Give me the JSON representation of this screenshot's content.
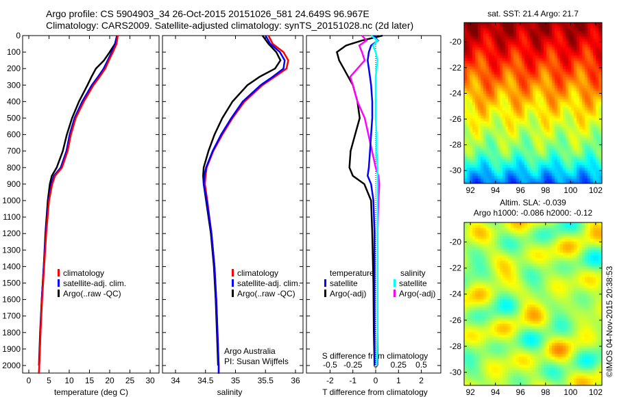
{
  "header": {
    "line1": "Argo profile: CS 5904903_34 26-Oct-2015 20151026_581 24.649S 96.967E",
    "line2": "Climatology: CARS2009. Satellite-adjusted climatology: synTS_20151028.nc (2d later)"
  },
  "footer_stamp": "©IMOS 04-Nov-2015 20:38:53",
  "colors": {
    "climatology": "#ff0000",
    "satellite": "#0000ff",
    "argo": "#000000",
    "sal_satellite": "#00ffff",
    "sal_argo": "#ff00ff"
  },
  "chart_data": [
    {
      "type": "line",
      "id": "temperature",
      "xlabel": "temperature (deg C)",
      "ylabel": "",
      "xlim": [
        -2,
        32
      ],
      "ylim": [
        2050,
        0
      ],
      "xticks": [
        0,
        5,
        10,
        15,
        20,
        25,
        30
      ],
      "yticks": [
        0,
        100,
        200,
        300,
        400,
        500,
        600,
        700,
        800,
        900,
        1000,
        1100,
        1200,
        1300,
        1400,
        1500,
        1600,
        1700,
        1800,
        1900,
        2000
      ],
      "depth": [
        0,
        50,
        100,
        150,
        200,
        250,
        300,
        400,
        500,
        600,
        700,
        800,
        850,
        900,
        1000,
        1200,
        1400,
        1600,
        1800,
        2000,
        2050
      ],
      "series": [
        {
          "name": "climatology",
          "values": [
            22.0,
            21.7,
            20.8,
            19.8,
            18.9,
            17.5,
            16.0,
            13.6,
            11.6,
            10.4,
            9.6,
            8.2,
            6.5,
            5.8,
            5.0,
            4.3,
            3.8,
            3.3,
            2.9,
            2.6,
            2.5
          ]
        },
        {
          "name": "satellite-adj. clim.",
          "values": [
            21.8,
            21.4,
            20.5,
            19.5,
            18.5,
            17.1,
            15.6,
            13.2,
            11.3,
            10.1,
            9.3,
            7.9,
            6.2,
            5.6,
            4.9,
            4.2,
            3.7,
            3.2,
            2.9,
            2.6,
            2.5
          ]
        },
        {
          "name": "Argo(..raw -QC)",
          "values": [
            21.8,
            21.3,
            20.0,
            18.6,
            16.6,
            15.5,
            14.5,
            12.4,
            10.7,
            9.4,
            8.4,
            6.9,
            5.7,
            5.2,
            4.7,
            4.1,
            3.7,
            3.2,
            2.8,
            2.5,
            null
          ]
        }
      ],
      "legend": [
        "climatology",
        "satellite-adj. clim.",
        "Argo(..raw -QC)"
      ]
    },
    {
      "type": "line",
      "id": "salinity",
      "xlabel": "salinity",
      "xlim": [
        33.75,
        36.1
      ],
      "ylim": [
        2050,
        0
      ],
      "xticks": [
        34,
        34.5,
        35,
        35.5,
        36
      ],
      "depth": [
        0,
        50,
        100,
        150,
        200,
        250,
        300,
        400,
        500,
        600,
        700,
        800,
        850,
        900,
        1000,
        1200,
        1400,
        1600,
        1800,
        2000,
        2050
      ],
      "series": [
        {
          "name": "climatology",
          "values": [
            35.55,
            35.62,
            35.8,
            35.88,
            35.85,
            35.65,
            35.45,
            35.15,
            34.95,
            34.78,
            34.63,
            34.52,
            34.5,
            34.49,
            34.53,
            34.6,
            34.65,
            34.68,
            34.7,
            34.72,
            34.72
          ]
        },
        {
          "name": "satellite-adj. clim.",
          "values": [
            35.5,
            35.58,
            35.74,
            35.82,
            35.8,
            35.62,
            35.42,
            35.12,
            34.93,
            34.76,
            34.62,
            34.51,
            34.48,
            34.47,
            34.52,
            34.6,
            34.65,
            34.68,
            34.7,
            34.72,
            34.72
          ]
        },
        {
          "name": "Argo(..raw -QC)",
          "values": [
            35.45,
            35.55,
            35.68,
            35.75,
            35.66,
            35.4,
            35.2,
            34.95,
            34.78,
            34.65,
            34.55,
            34.47,
            34.46,
            34.47,
            34.51,
            34.59,
            34.64,
            34.67,
            34.69,
            34.71,
            null
          ]
        }
      ],
      "legend": [
        "climatology",
        "satellite-adj. clim.",
        "Argo(..raw -QC)"
      ],
      "annotation": [
        "Argo Australia",
        "PI: Susan Wijffels"
      ]
    },
    {
      "type": "line",
      "id": "difference",
      "xlabel": "T difference from climatology",
      "xlabel_top": "S difference from climatology",
      "xlim_T": [
        -3,
        3
      ],
      "xlim_S": [
        -0.75,
        0.75
      ],
      "xticks_T": [
        -2,
        -1,
        0,
        1,
        2
      ],
      "xticks_S": [
        -0.5,
        -0.25,
        0,
        0.25,
        0.5
      ],
      "depth": [
        0,
        30,
        60,
        100,
        150,
        200,
        250,
        300,
        400,
        500,
        600,
        700,
        800,
        850,
        900,
        1000,
        1200,
        1500,
        1800,
        2000
      ],
      "series": [
        {
          "name": "temperature satellite",
          "axis": "T",
          "values": [
            -0.1,
            0.1,
            -0.2,
            -0.3,
            -0.35,
            -0.3,
            -0.25,
            -0.2,
            -0.15,
            -0.15,
            -0.2,
            -0.25,
            -0.3,
            -0.35,
            -0.2,
            -0.1,
            -0.05,
            -0.05,
            -0.05,
            -0.05
          ]
        },
        {
          "name": "temperature Argo(-adj)",
          "axis": "T",
          "values": [
            0.3,
            -0.6,
            -1.3,
            -1.7,
            -1.6,
            -1.4,
            -1.2,
            -1.0,
            -0.8,
            -0.7,
            -0.9,
            -1.1,
            -1.15,
            -1.0,
            -0.5,
            -0.2,
            -0.15,
            -0.1,
            -0.08,
            -0.05
          ]
        },
        {
          "name": "salinity satellite",
          "axis": "S",
          "values": [
            -0.05,
            0.02,
            -0.03,
            0.0,
            0.02,
            0.01,
            0.0,
            0.0,
            0.0,
            0.0,
            0.01,
            0.01,
            0.02,
            0.02,
            0.02,
            0.02,
            0.02,
            0.02,
            0.02,
            0.01
          ]
        },
        {
          "name": "salinity Argo(-adj)",
          "axis": "S",
          "values": [
            -0.15,
            -0.1,
            -0.18,
            -0.15,
            -0.12,
            -0.2,
            -0.28,
            -0.25,
            -0.2,
            -0.12,
            -0.08,
            -0.04,
            0.0,
            0.03,
            0.04,
            0.03,
            0.02,
            0.02,
            0.02,
            0.02
          ]
        }
      ],
      "legend_T_title": "temperature",
      "legend_S_title": "salinity",
      "legend": [
        "satellite",
        "Argo(-adj)",
        "satellite",
        "Argo(-adj)"
      ]
    },
    {
      "type": "heatmap",
      "id": "sst-map",
      "title": "sat. SST: 21.4 Argo: 21.7",
      "xticks": [
        92,
        94,
        96,
        98,
        100,
        102
      ],
      "yticks": [
        -20,
        -22,
        -24,
        -26,
        -28,
        -30
      ],
      "xlim": [
        91.5,
        102.5
      ],
      "ylim": [
        -31,
        -18.5
      ]
    },
    {
      "type": "heatmap",
      "id": "sla-map",
      "title": [
        "Altim. SLA: -0.039",
        "Argo h1000: -0.086 h2000: -0.12"
      ],
      "xticks": [
        92,
        94,
        96,
        98,
        100,
        102
      ],
      "yticks": [
        -20,
        -22,
        -24,
        -26,
        -28,
        -30
      ],
      "xlim": [
        91.5,
        102.5
      ],
      "ylim": [
        -31,
        -18.5
      ]
    }
  ]
}
